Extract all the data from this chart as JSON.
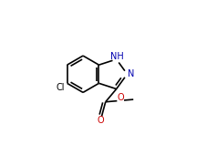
{
  "bg_color": "#ffffff",
  "line_color": "#000000",
  "atom_colors": {
    "N": "#0000b0",
    "O": "#cc0000",
    "Cl": "#000000",
    "C": "#000000"
  },
  "font_size_atom": 7.0,
  "linewidth": 1.2,
  "figsize": [
    2.38,
    1.59
  ],
  "dpi": 100
}
